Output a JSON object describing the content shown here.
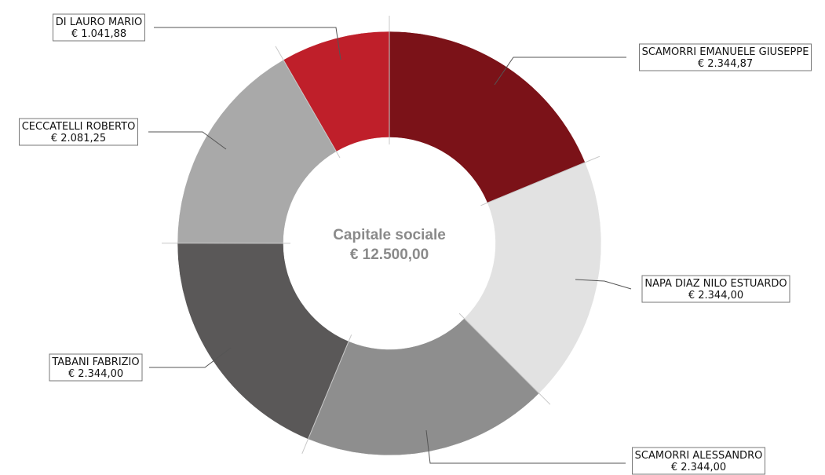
{
  "chart_data": {
    "type": "pie",
    "variant": "donut",
    "center": {
      "title": "Capitale sociale",
      "total_label": "€ 12.500,00",
      "total": 12500.0
    },
    "slices": [
      {
        "name": "SCAMORRI EMANUELE GIUSEPPE",
        "value": 2344.87,
        "value_label": "€ 2.344,87",
        "color": "#7b1218"
      },
      {
        "name": "NAPA DIAZ NILO ESTUARDO",
        "value": 2344.0,
        "value_label": "€ 2.344,00",
        "color": "#e2e2e2"
      },
      {
        "name": "SCAMORRI ALESSANDRO",
        "value": 2344.0,
        "value_label": "€ 2.344,00",
        "color": "#8e8e8e"
      },
      {
        "name": "TABANI FABRIZIO",
        "value": 2344.0,
        "value_label": "€ 2.344,00",
        "color": "#5a5858"
      },
      {
        "name": "CECCATELLI ROBERTO",
        "value": 2081.25,
        "value_label": "€ 2.081,25",
        "color": "#a9a9a9"
      },
      {
        "name": "DI LAURO MARIO",
        "value": 1041.88,
        "value_label": "€ 1.041,88",
        "color": "#bf1f2a"
      }
    ]
  }
}
